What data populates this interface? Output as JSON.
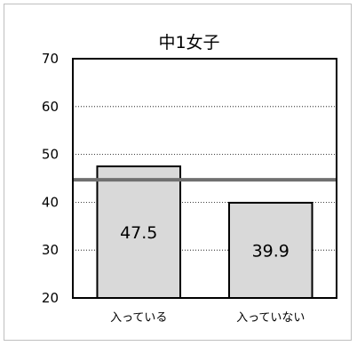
{
  "chart_data": {
    "type": "bar",
    "title": "中1女子",
    "categories": [
      "入っている",
      "入っていない"
    ],
    "values": [
      47.5,
      39.9
    ],
    "data_labels": [
      "47.5",
      "39.9"
    ],
    "ylim": [
      20,
      70
    ],
    "yticks": [
      "20",
      "30",
      "40",
      "50",
      "60",
      "70"
    ],
    "reference_line": 44.7,
    "bar_color": "#d9d9d9",
    "bar_border_color": "#000000",
    "reference_line_color": "#707070",
    "grid": "horizontal dotted",
    "legend": "none"
  }
}
